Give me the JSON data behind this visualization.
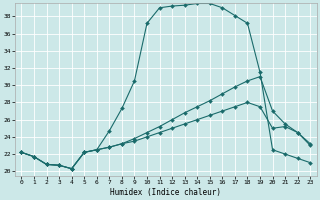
{
  "xlabel": "Humidex (Indice chaleur)",
  "bg_color": "#cce8e8",
  "line_color": "#1a6b6b",
  "grid_color": "#ffffff",
  "xlim": [
    -0.5,
    23.5
  ],
  "ylim": [
    19.5,
    39.5
  ],
  "xticks": [
    0,
    1,
    2,
    3,
    4,
    5,
    6,
    7,
    8,
    9,
    10,
    11,
    12,
    13,
    14,
    15,
    16,
    17,
    18,
    19,
    20,
    21,
    22,
    23
  ],
  "yticks": [
    20,
    22,
    24,
    26,
    28,
    30,
    32,
    34,
    36,
    38
  ],
  "line1_x": [
    0,
    1,
    2,
    3,
    4,
    5,
    6,
    7,
    8,
    9,
    10,
    11,
    12,
    13,
    14,
    15,
    16,
    17,
    18,
    19,
    20,
    21,
    22,
    23
  ],
  "line1_y": [
    22.2,
    21.7,
    20.8,
    20.7,
    20.3,
    22.2,
    22.5,
    24.7,
    27.3,
    30.5,
    37.2,
    39.0,
    39.2,
    39.3,
    39.5,
    39.5,
    39.0,
    38.1,
    37.2,
    31.5,
    22.5,
    22.0,
    21.5,
    21.0
  ],
  "line2_x": [
    0,
    1,
    2,
    3,
    4,
    5,
    6,
    7,
    8,
    9,
    10,
    11,
    12,
    13,
    14,
    15,
    16,
    17,
    18,
    19,
    20,
    21,
    22,
    23
  ],
  "line2_y": [
    22.2,
    21.7,
    20.8,
    20.7,
    20.3,
    22.2,
    22.5,
    22.8,
    23.2,
    23.8,
    24.5,
    25.2,
    26.0,
    26.8,
    27.5,
    28.2,
    29.0,
    29.8,
    30.5,
    31.0,
    27.0,
    25.5,
    24.5,
    23.0
  ],
  "line3_x": [
    0,
    1,
    2,
    3,
    4,
    5,
    6,
    7,
    8,
    9,
    10,
    11,
    12,
    13,
    14,
    15,
    16,
    17,
    18,
    19,
    20,
    21,
    22,
    23
  ],
  "line3_y": [
    22.2,
    21.7,
    20.8,
    20.7,
    20.3,
    22.2,
    22.5,
    22.8,
    23.2,
    23.5,
    24.0,
    24.5,
    25.0,
    25.5,
    26.0,
    26.5,
    27.0,
    27.5,
    28.0,
    27.5,
    25.0,
    25.2,
    24.5,
    23.2
  ]
}
